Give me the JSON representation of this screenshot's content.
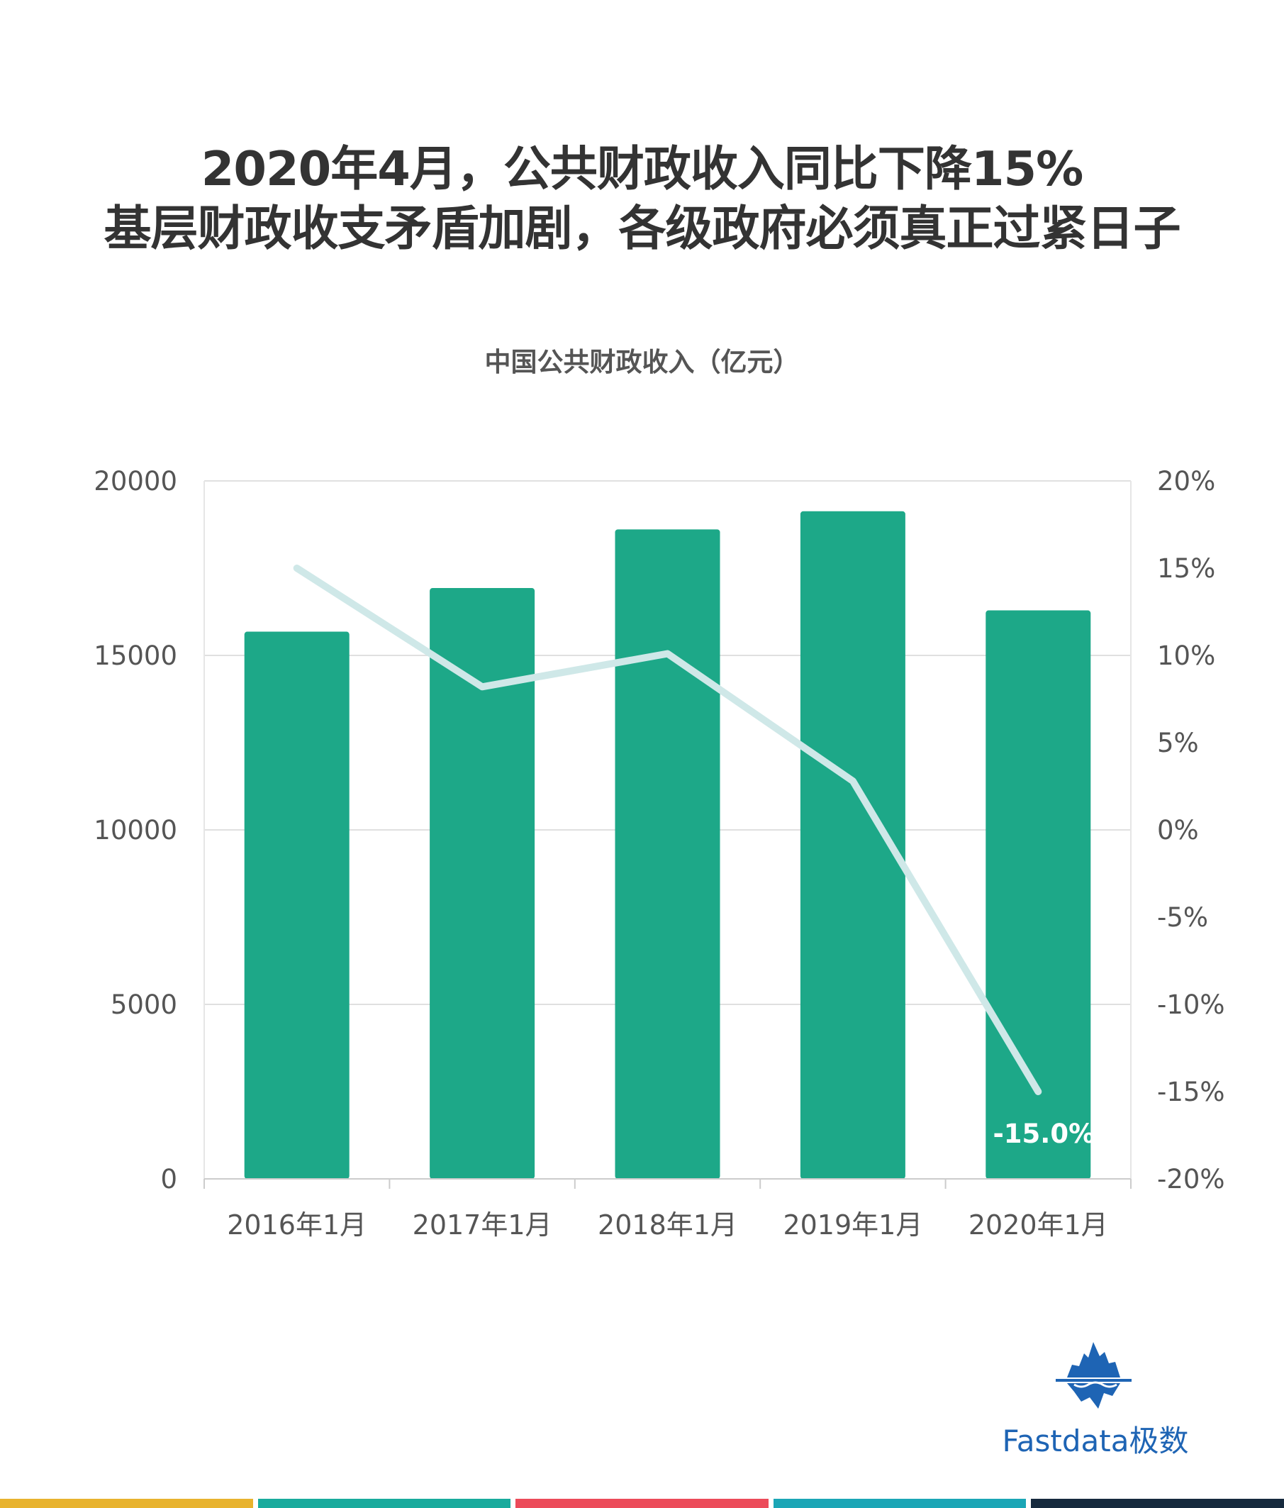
{
  "headline": {
    "line1": "2020年4月，公共财政收入同比下降15%",
    "line2": "基层财政收支矛盾加剧，各级政府必须真正过紧日子"
  },
  "chart_data": {
    "type": "bar",
    "title": "中国公共财政收入（亿元）",
    "categories": [
      "2016年1月",
      "2017年1月",
      "2018年1月",
      "2019年1月",
      "2020年1月"
    ],
    "series": [
      {
        "type": "bar",
        "values": [
          15680,
          16930,
          18610,
          19130,
          16290
        ],
        "color": "#1da888"
      },
      {
        "type": "line",
        "axis": "right",
        "values": [
          15.0,
          8.2,
          10.1,
          2.8,
          -15.0
        ],
        "color": "#cfe8e8"
      }
    ],
    "annotations": [
      {
        "series": 1,
        "index": 4,
        "text": "-15.0%"
      }
    ],
    "y_left": {
      "min": 0,
      "max": 20000,
      "ticks": [
        "20000",
        "15000",
        "10000",
        "5000",
        "0"
      ]
    },
    "y_right": {
      "min": -20,
      "max": 20,
      "ticks": [
        "20%",
        "15%",
        "10%",
        "5%",
        "0%",
        "-5%",
        "-10%",
        "-15%",
        "-20%"
      ]
    },
    "grid": true,
    "legend": "none"
  },
  "logo": {
    "text": "Fastdata极数",
    "icon": "iceberg-icon",
    "color": "#1e64b4"
  },
  "bottom_bar": [
    "#e8b32e",
    "#19ab9d",
    "#ec4b5a",
    "#1ba6b6",
    "#162a3e"
  ]
}
